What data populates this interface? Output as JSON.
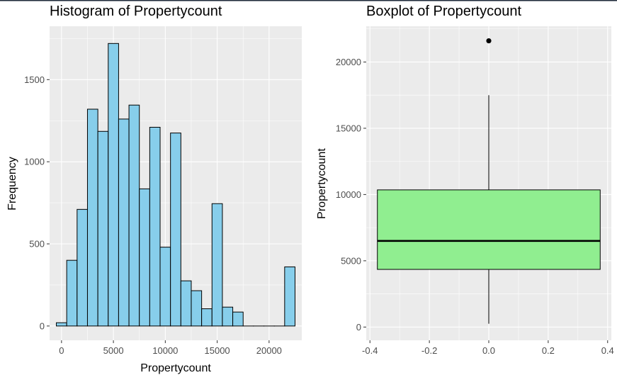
{
  "colors": {
    "panel_bg": "#EBEBEB",
    "grid_major": "#FFFFFF",
    "hist_fill": "#87CEEB",
    "box_fill": "#90EE90",
    "outline": "#000000"
  },
  "chart_data": [
    {
      "type": "bar",
      "title": "Histogram of Propertycount",
      "xlabel": "Propertycount",
      "ylabel": "Frequency",
      "bin_width": 1000,
      "bin_centers": [
        0,
        1000,
        2000,
        3000,
        4000,
        5000,
        6000,
        7000,
        8000,
        9000,
        10000,
        11000,
        12000,
        13000,
        14000,
        15000,
        16000,
        17000,
        18000,
        19000,
        20000,
        21000,
        22000
      ],
      "values": [
        20,
        400,
        710,
        1320,
        1185,
        1720,
        1260,
        1345,
        835,
        1210,
        480,
        1175,
        275,
        215,
        105,
        745,
        115,
        85,
        0,
        0,
        0,
        0,
        360
      ],
      "xlim": [
        -1150,
        23150
      ],
      "ylim": [
        -87,
        1825
      ],
      "xticks": [
        0,
        5000,
        10000,
        15000,
        20000
      ],
      "xtick_labels": [
        "0",
        "5000",
        "10000",
        "15000",
        "20000"
      ],
      "yticks": [
        0,
        500,
        1000,
        1500
      ],
      "ytick_labels": [
        "0",
        "500",
        "1000",
        "1500"
      ],
      "grid": true,
      "legend": "none"
    },
    {
      "type": "boxplot",
      "title": "Boxplot of Propertycount",
      "xlabel": "",
      "ylabel": "Propertycount",
      "x_center": 0,
      "box_halfwidth": 0.375,
      "min": 250,
      "q1": 4350,
      "median": 6500,
      "q3": 10350,
      "max": 17500,
      "outliers": [
        21600
      ],
      "xlim": [
        -0.4125,
        0.4125
      ],
      "ylim": [
        -1000,
        22700
      ],
      "xticks": [
        -0.4,
        -0.2,
        0.0,
        0.2,
        0.4
      ],
      "xtick_labels": [
        "-0.4",
        "-0.2",
        "0.0",
        "0.2",
        "0.4"
      ],
      "yticks": [
        0,
        5000,
        10000,
        15000,
        20000
      ],
      "ytick_labels": [
        "0",
        "5000",
        "10000",
        "15000",
        "20000"
      ],
      "grid": true,
      "legend": "none"
    }
  ]
}
